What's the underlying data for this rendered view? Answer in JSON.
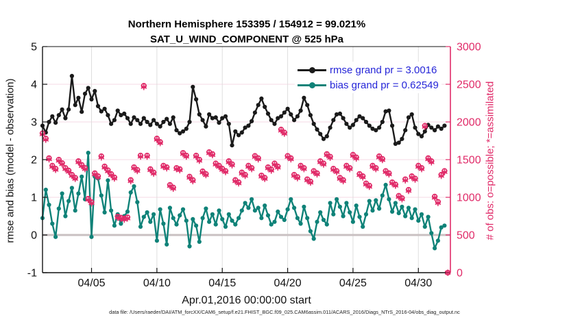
{
  "header": {
    "title_line1": "Northern Hemisphere 153395 / 154912 = 99.021%",
    "title_line2": "SAT_U_WIND_COMPONENT @ 525 hPa"
  },
  "footer": {
    "caption": "data file: /Users/raeder/DAI/ATM_forcXX/CAM6_setup/f.e21.FHIST_BGC.f09_025.CAM6assim.011/ACARS_2016/Diags_NTrS_2016-04/obs_diag_output.nc"
  },
  "colors": {
    "rmse_series": "#1a1a1a",
    "bias_series": "#0f8278",
    "obs_markers": "#e02a68",
    "legend_text": "#2525d8",
    "h_gridline": "#f5dae4",
    "v_gridline": "#dedede",
    "zero_line": "#c9c0c1",
    "axis_left": "#111111",
    "axis_right": "#e02a68"
  },
  "chart_data": {
    "type": "line",
    "title": "Northern Hemisphere 153395 / 154912 = 99.021% — SAT_U_WIND_COMPONENT @ 525 hPa",
    "xlabel": "Apr.01,2016 00:00:00 start",
    "ylabel_left": "rmse and bias (model - observation)",
    "ylabel_right": "# of obs: o=possible; *=assimilated",
    "ylim_left": [
      -1,
      5
    ],
    "yticks_left": [
      "5",
      "4",
      "3",
      "2",
      "1",
      "0",
      "-1"
    ],
    "yticks_left_values": [
      5,
      4,
      3,
      2,
      1,
      0,
      -1
    ],
    "ylim_right": [
      0,
      3000
    ],
    "yticks_right": [
      "3000",
      "2500",
      "2000",
      "1500",
      "1000",
      "500",
      "0"
    ],
    "yticks_right_values": [
      3000,
      2500,
      2000,
      1500,
      1000,
      500,
      0
    ],
    "x_domain_days": [
      0.25,
      31.45
    ],
    "xticks": [
      {
        "t": 4,
        "label": "04/05"
      },
      {
        "t": 9,
        "label": "04/10"
      },
      {
        "t": 14,
        "label": "04/15"
      },
      {
        "t": 19,
        "label": "04/20"
      },
      {
        "t": 24,
        "label": "04/25"
      },
      {
        "t": 29,
        "label": "04/30"
      }
    ],
    "time_bins": {
      "start_days_after_apr1": 0.25,
      "step_days": 0.25,
      "count": 125
    },
    "grid": true,
    "legend": {
      "position": "top-right",
      "entries": [
        {
          "label": "rmse grand pr = 3.0016",
          "series": "rmse"
        },
        {
          "label": "bias grand pr = 0.62549",
          "series": "bias"
        }
      ]
    },
    "series": [
      {
        "name": "rmse",
        "axis": "left",
        "marker": "dot",
        "values": [
          2.9,
          2.72,
          3.0,
          3.15,
          2.98,
          3.18,
          3.33,
          3.1,
          3.33,
          4.22,
          3.45,
          3.64,
          3.27,
          3.75,
          3.9,
          3.6,
          3.82,
          3.42,
          3.28,
          3.35,
          3.18,
          2.95,
          3.05,
          3.3,
          3.18,
          3.22,
          3.1,
          2.95,
          3.12,
          3.05,
          2.95,
          3.1,
          3.0,
          2.92,
          3.05,
          2.95,
          2.88,
          3.0,
          3.08,
          2.95,
          3.12,
          2.78,
          2.7,
          2.75,
          2.82,
          3.0,
          3.93,
          3.6,
          3.2,
          3.05,
          2.88,
          3.2,
          3.1,
          3.12,
          2.98,
          3.1,
          3.15,
          2.95,
          2.38,
          2.75,
          2.65,
          2.72,
          2.85,
          2.9,
          3.02,
          3.25,
          3.45,
          3.62,
          3.4,
          3.22,
          3.05,
          2.95,
          3.1,
          3.15,
          3.25,
          3.35,
          3.2,
          3.05,
          3.15,
          3.3,
          3.64,
          3.45,
          3.18,
          2.95,
          2.8,
          2.68,
          2.55,
          2.62,
          2.85,
          3.05,
          3.2,
          3.22,
          3.1,
          2.95,
          2.85,
          2.92,
          3.05,
          3.15,
          3.1,
          3.0,
          2.9,
          2.82,
          2.78,
          2.85,
          3.0,
          3.28,
          3.3,
          2.9,
          2.42,
          2.45,
          2.55,
          2.78,
          3.12,
          3.2,
          2.85,
          2.68,
          2.62,
          2.75,
          2.92,
          2.85,
          2.78,
          2.88,
          2.82,
          2.9
        ]
      },
      {
        "name": "bias",
        "axis": "left",
        "marker": "dot",
        "values": [
          0.45,
          1.2,
          0.8,
          0.3,
          -0.05,
          0.7,
          1.1,
          0.5,
          0.9,
          1.25,
          0.65,
          1.1,
          1.55,
          0.95,
          2.18,
          -0.05,
          1.55,
          1.5,
          1.05,
          0.6,
          1.45,
          0.65,
          0.25,
          0.55,
          0.3,
          0.5,
          0.62,
          1.13,
          1.29,
          0.87,
          0.22,
          0.48,
          0.6,
          0.35,
          0.55,
          -0.15,
          0.68,
          0.3,
          -0.25,
          0.72,
          0.45,
          0.28,
          0.52,
          0.68,
          0.38,
          -0.3,
          0.42,
          0.25,
          -0.18,
          0.45,
          0.7,
          0.35,
          0.55,
          0.28,
          0.65,
          0.42,
          0.22,
          0.55,
          0.38,
          0.28,
          0.45,
          0.65,
          0.85,
          0.72,
          0.95,
          0.65,
          0.72,
          0.45,
          0.78,
          0.52,
          0.28,
          0.35,
          0.62,
          0.48,
          0.4,
          0.68,
          0.95,
          0.72,
          0.45,
          0.3,
          0.75,
          0.45,
          0.1,
          -0.1,
          0.35,
          0.6,
          0.4,
          0.28,
          0.85,
          0.55,
          0.95,
          0.75,
          0.5,
          0.85,
          0.6,
          0.35,
          0.78,
          0.48,
          0.22,
          0.55,
          0.9,
          0.65,
          0.92,
          0.7,
          1.05,
          1.33,
          0.95,
          0.62,
          0.85,
          0.58,
          0.75,
          0.5,
          0.72,
          0.45,
          0.68,
          0.38,
          0.55,
          0.22,
          0.48,
          0.05,
          -0.35,
          -0.15,
          0.2,
          0.25
        ]
      },
      {
        "name": "possible",
        "axis": "right",
        "marker": "o",
        "values": [
          1850,
          1780,
          1520,
          1420,
          1380,
          1500,
          1455,
          1390,
          1355,
          1300,
          1260,
          1480,
          1430,
          1390,
          982,
          936,
          1320,
          1280,
          1545,
          1410,
          1360,
          1310,
          1265,
          745,
          730,
          720,
          735,
          1230,
          1400,
          1365,
          1555,
          2480,
          1555,
          1375,
          1330,
          1780,
          1735,
          1420,
          1400,
          1165,
          1130,
          1390,
          1375,
          1590,
          1555,
          1275,
          1230,
          1555,
          1500,
          1345,
          1310,
          1600,
          1575,
          1450,
          1420,
          1380,
          1350,
          1480,
          1440,
          1230,
          1200,
          1330,
          1300,
          1420,
          1390,
          1550,
          1520,
          1290,
          1260,
          1400,
          1370,
          1450,
          1410,
          1900,
          1860,
          1550,
          1520,
          1300,
          1270,
          1420,
          1390,
          1240,
          1210,
          1350,
          1320,
          1480,
          1450,
          1575,
          1540,
          1380,
          1350,
          1260,
          1230,
          1420,
          1390,
          1565,
          1530,
          1310,
          1280,
          1185,
          1155,
          1420,
          1390,
          1545,
          1510,
          1350,
          1320,
          1200,
          1170,
          1020,
          990,
          1240,
          1100,
          1280,
          1250,
          1420,
          1390,
          1950,
          1520,
          1480,
          1010,
          940,
          1300,
          1350,
          0
        ]
      },
      {
        "name": "assimilated",
        "axis": "right",
        "marker": "asterisk",
        "values": [
          1835,
          1765,
          1505,
          1405,
          1365,
          1485,
          1440,
          1375,
          1340,
          1285,
          1245,
          1465,
          1415,
          1375,
          967,
          921,
          1305,
          1265,
          1530,
          1395,
          1345,
          1295,
          1250,
          730,
          715,
          705,
          720,
          1215,
          1385,
          1350,
          1540,
          2465,
          1540,
          1360,
          1315,
          1765,
          1720,
          1405,
          1385,
          1150,
          1115,
          1375,
          1360,
          1575,
          1540,
          1260,
          1215,
          1540,
          1485,
          1330,
          1295,
          1585,
          1560,
          1435,
          1405,
          1365,
          1335,
          1465,
          1425,
          1215,
          1185,
          1315,
          1285,
          1405,
          1375,
          1535,
          1505,
          1275,
          1245,
          1385,
          1355,
          1435,
          1395,
          1885,
          1845,
          1535,
          1505,
          1285,
          1255,
          1405,
          1375,
          1225,
          1195,
          1335,
          1305,
          1465,
          1435,
          1560,
          1525,
          1365,
          1335,
          1245,
          1215,
          1405,
          1375,
          1550,
          1515,
          1295,
          1265,
          1170,
          1140,
          1405,
          1375,
          1530,
          1495,
          1335,
          1305,
          1185,
          1155,
          1005,
          975,
          1225,
          1085,
          1265,
          1235,
          1405,
          1375,
          1935,
          1505,
          1465,
          995,
          925,
          1285,
          1335,
          0
        ]
      }
    ]
  }
}
